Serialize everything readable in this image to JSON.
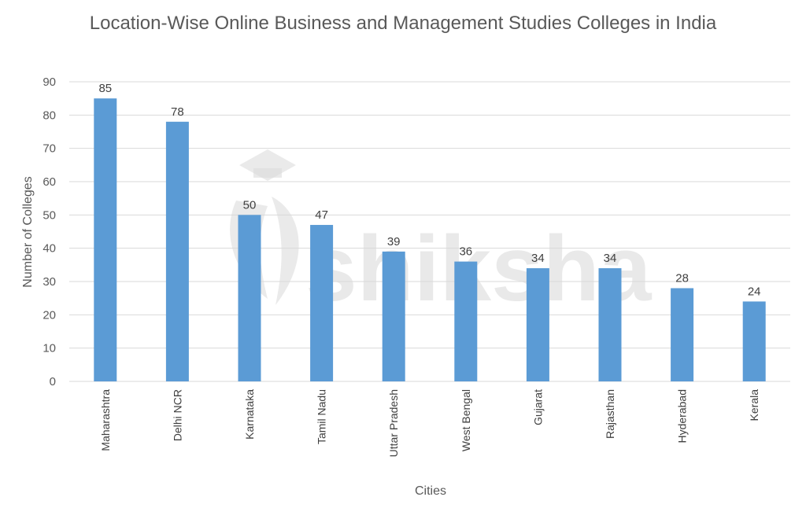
{
  "chart_data": {
    "type": "bar",
    "title": "Location-Wise Online Business and Management Studies Colleges in India",
    "xlabel": "Cities",
    "ylabel": "Number of Colleges",
    "categories": [
      "Maharashtra",
      "Delhi NCR",
      "Karnataka",
      "Tamil Nadu",
      "Uttar Pradesh",
      "West Bengal",
      "Gujarat",
      "Rajasthan",
      "Hyderabad",
      "Kerala"
    ],
    "values": [
      85,
      78,
      50,
      47,
      39,
      36,
      34,
      34,
      28,
      24
    ],
    "ylim": [
      0,
      90
    ],
    "yticks": [
      0,
      10,
      20,
      30,
      40,
      50,
      60,
      70,
      80,
      90
    ],
    "grid": true,
    "legend": "none",
    "bar_color": "#5b9bd5",
    "grid_color": "#d9d9d9"
  },
  "watermark": {
    "text": "shiksha",
    "icon": "graduation-cap-icon"
  }
}
